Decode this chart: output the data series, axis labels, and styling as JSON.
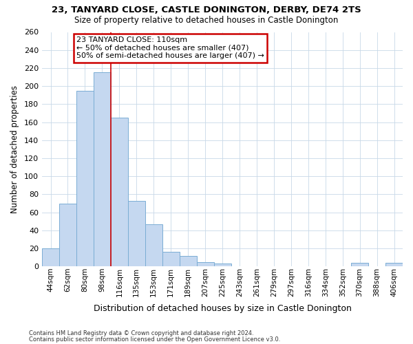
{
  "title1": "23, TANYARD CLOSE, CASTLE DONINGTON, DERBY, DE74 2TS",
  "title2": "Size of property relative to detached houses in Castle Donington",
  "xlabel": "Distribution of detached houses by size in Castle Donington",
  "ylabel": "Number of detached properties",
  "footnote1": "Contains HM Land Registry data © Crown copyright and database right 2024.",
  "footnote2": "Contains public sector information licensed under the Open Government Licence v3.0.",
  "bar_labels": [
    "44sqm",
    "62sqm",
    "80sqm",
    "98sqm",
    "116sqm",
    "135sqm",
    "153sqm",
    "171sqm",
    "189sqm",
    "207sqm",
    "225sqm",
    "243sqm",
    "261sqm",
    "279sqm",
    "297sqm",
    "316sqm",
    "334sqm",
    "352sqm",
    "370sqm",
    "388sqm",
    "406sqm"
  ],
  "bar_values": [
    20,
    70,
    195,
    215,
    165,
    73,
    47,
    16,
    12,
    5,
    3,
    0,
    0,
    0,
    0,
    0,
    0,
    0,
    4,
    0,
    4
  ],
  "bar_color": "#c5d8f0",
  "bar_edge_color": "#7aadd4",
  "grid_color": "#c8d8e8",
  "background_color": "#ffffff",
  "red_line_x": 3.5,
  "annotation_line1": "23 TANYARD CLOSE: 110sqm",
  "annotation_line2": "← 50% of detached houses are smaller (407)",
  "annotation_line3": "50% of semi-detached houses are larger (407) →",
  "annotation_box_color": "#ffffff",
  "annotation_border_color": "#cc0000",
  "ylim": [
    0,
    260
  ],
  "yticks": [
    0,
    20,
    40,
    60,
    80,
    100,
    120,
    140,
    160,
    180,
    200,
    220,
    240,
    260
  ]
}
